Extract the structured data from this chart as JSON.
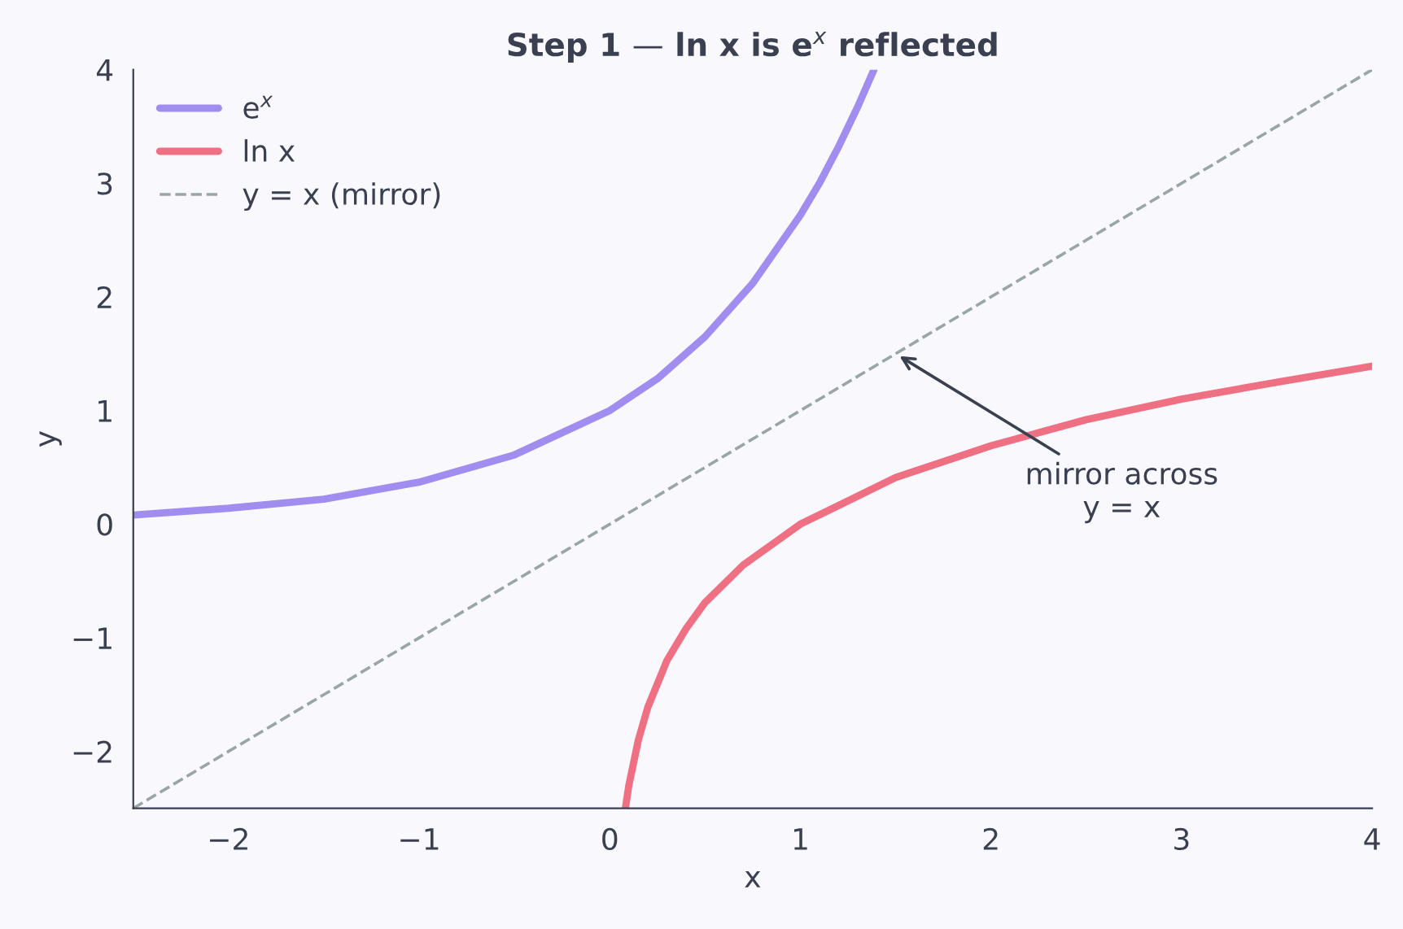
{
  "chart_data": {
    "type": "line",
    "title": "Step 1 — ln x is e$^{x}$ reflected",
    "xlabel": "x",
    "ylabel": "y",
    "xlim": [
      -2.5,
      4
    ],
    "ylim": [
      -2.5,
      4
    ],
    "xticks": [
      {
        "value": -2,
        "label": "−2"
      },
      {
        "value": -1,
        "label": "−1"
      },
      0,
      1,
      2,
      3,
      4
    ],
    "yticks": [
      {
        "value": -2,
        "label": "−2"
      },
      {
        "value": -1,
        "label": "−1"
      },
      0,
      1,
      2,
      3,
      4
    ],
    "grid": false,
    "legend": "top left",
    "marker": "none",
    "series": [
      {
        "name": "e$^{x}$",
        "color": "#a18cf0",
        "line_style": "solid",
        "x": [
          -2.5,
          -2,
          -1.5,
          -1,
          -0.5,
          0,
          0.25,
          0.5,
          0.75,
          1,
          1.1,
          1.2,
          1.3,
          1.386
        ],
        "values": [
          0.08,
          0.14,
          0.22,
          0.37,
          0.61,
          1,
          1.28,
          1.65,
          2.12,
          2.72,
          3.0,
          3.32,
          3.67,
          4
        ]
      },
      {
        "name": "ln x",
        "color": "#f07083",
        "line_style": "solid",
        "x": [
          0.082,
          0.1,
          0.15,
          0.2,
          0.3,
          0.4,
          0.5,
          0.7,
          1,
          1.5,
          2,
          2.5,
          3,
          3.5,
          4
        ],
        "values": [
          -2.5,
          -2.3,
          -1.9,
          -1.61,
          -1.2,
          -0.92,
          -0.69,
          -0.36,
          0,
          0.41,
          0.69,
          0.92,
          1.1,
          1.25,
          1.39
        ]
      },
      {
        "name": "y = x (mirror)",
        "color": "#9aa5a5",
        "line_style": "dashed",
        "x": [
          -2.5,
          4
        ],
        "values": [
          -2.5,
          4
        ]
      }
    ],
    "annotations": [
      {
        "text": "mirror across\ny = x",
        "x": 1.5,
        "y": 1.5
      }
    ]
  }
}
